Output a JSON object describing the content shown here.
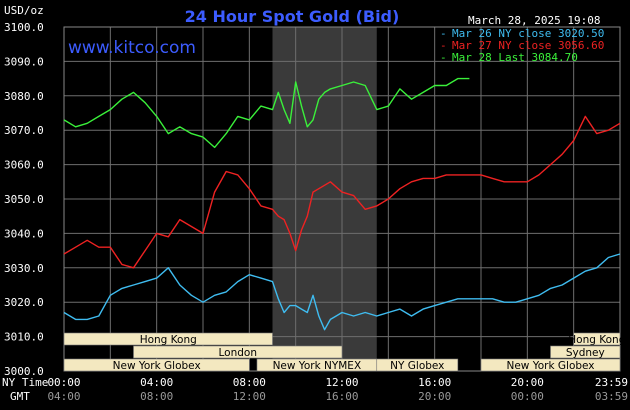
{
  "header": {
    "units": "USD/oz",
    "title": "24 Hour Spot Gold (Bid)",
    "timestamp": "March 28, 2025 19:08",
    "website": "www.kitco.com"
  },
  "colors": {
    "background": "#000000",
    "grid": "#6e6e6e",
    "mar26": "#3fbcf0",
    "mar27": "#ee2222",
    "mar28": "#3af03a",
    "title": "#3c5cff",
    "session_box": "#f3e8c0",
    "highlight": "#3a3a3a"
  },
  "legend": [
    {
      "label": "Mar 26 NY close 3020.50",
      "color": "#3fbcf0"
    },
    {
      "label": "Mar 27 NY close 3056.60",
      "color": "#ee2222"
    },
    {
      "label": "Mar 28 Last 3084.70",
      "color": "#3af03a"
    }
  ],
  "sessions": [
    {
      "label": "Hong Kong",
      "start": 0.0,
      "end": 9.0,
      "row": 0
    },
    {
      "label": "Hong Kong",
      "start": 22.0,
      "end": 24.0,
      "row": 0
    },
    {
      "label": "London",
      "start": 3.0,
      "end": 12.0,
      "row": 1
    },
    {
      "label": "Sydney",
      "start": 21.0,
      "end": 24.0,
      "row": 1
    },
    {
      "label": "New York Globex",
      "start": 0.0,
      "end": 8.0,
      "row": 2
    },
    {
      "label": "New York NYMEX",
      "start": 8.33,
      "end": 13.5,
      "row": 2
    },
    {
      "label": "NY Globex",
      "start": 13.5,
      "end": 17.0,
      "row": 2
    },
    {
      "label": "New York Globex",
      "start": 18.0,
      "end": 24.0,
      "row": 2
    }
  ],
  "axis_text": {
    "ny_time_label": "NY Time",
    "gmt_label": "GMT",
    "ny_ticks": [
      "00:00",
      "04:00",
      "08:00",
      "12:00",
      "16:00",
      "20:00",
      "23:59"
    ],
    "gmt_ticks": [
      "04:00",
      "08:00",
      "12:00",
      "16:00",
      "20:00",
      "00:00",
      "03:59"
    ]
  },
  "chart_data": {
    "type": "line",
    "title": "24 Hour Spot Gold (Bid)",
    "ylabel": "USD/oz",
    "ylim": [
      3000,
      3100
    ],
    "yticks": [
      3000.0,
      3010.0,
      3020.0,
      3030.0,
      3040.0,
      3050.0,
      3060.0,
      3070.0,
      3080.0,
      3090.0,
      3100.0
    ],
    "xlim": [
      0,
      24
    ],
    "x_unit": "hours NY time",
    "nymex_session_hours": [
      9.0,
      13.5
    ],
    "grid": true,
    "legend_position": "top-right",
    "series": [
      {
        "name": "Mar 26 NY close 3020.50",
        "x": [
          0,
          0.5,
          1,
          1.5,
          2,
          2.5,
          3,
          3.5,
          4,
          4.5,
          5,
          5.5,
          6,
          6.5,
          7,
          7.5,
          8,
          8.5,
          9,
          9.25,
          9.5,
          9.75,
          10,
          10.25,
          10.5,
          10.75,
          11,
          11.25,
          11.5,
          11.75,
          12,
          12.5,
          13,
          13.5,
          14,
          14.5,
          15,
          15.5,
          16,
          16.5,
          17,
          17.5,
          18,
          18.5,
          19,
          19.5,
          20,
          20.5,
          21,
          21.5,
          22,
          22.5,
          23,
          23.5,
          24
        ],
        "values": [
          3017,
          3015,
          3015,
          3016,
          3022,
          3024,
          3025,
          3026,
          3027,
          3030,
          3025,
          3022,
          3020,
          3022,
          3023,
          3026,
          3028,
          3027,
          3026,
          3021,
          3017,
          3019,
          3019,
          3018,
          3017,
          3022,
          3016,
          3012,
          3015,
          3016,
          3017,
          3016,
          3017,
          3016,
          3017,
          3018,
          3016,
          3018,
          3019,
          3020,
          3021,
          3021,
          3021,
          3021,
          3020,
          3020,
          3021,
          3022,
          3024,
          3025,
          3027,
          3029,
          3030,
          3033,
          3034
        ]
      },
      {
        "name": "Mar 27 NY close 3056.60",
        "x": [
          0,
          0.5,
          1,
          1.5,
          2,
          2.5,
          3,
          3.5,
          4,
          4.5,
          5,
          5.5,
          6,
          6.5,
          7,
          7.5,
          8,
          8.5,
          9,
          9.25,
          9.5,
          9.75,
          10,
          10.25,
          10.5,
          10.75,
          11,
          11.5,
          12,
          12.5,
          13,
          13.5,
          14,
          14.5,
          15,
          15.5,
          16,
          16.5,
          17,
          17.5,
          18,
          18.5,
          19,
          19.5,
          20,
          20.5,
          21,
          21.5,
          22,
          22.5,
          23,
          23.5,
          24
        ],
        "values": [
          3034,
          3036,
          3038,
          3036,
          3036,
          3031,
          3030,
          3035,
          3040,
          3039,
          3044,
          3042,
          3040,
          3052,
          3058,
          3057,
          3053,
          3048,
          3047,
          3045,
          3044,
          3040,
          3035,
          3041,
          3045,
          3052,
          3053,
          3055,
          3052,
          3051,
          3047,
          3048,
          3050,
          3053,
          3055,
          3056,
          3056,
          3057,
          3057,
          3057,
          3057,
          3056,
          3055,
          3055,
          3055,
          3057,
          3060,
          3063,
          3067,
          3074,
          3069,
          3070,
          3072
        ]
      },
      {
        "name": "Mar 28 Last 3084.70",
        "x": [
          0,
          0.5,
          1,
          1.5,
          2,
          2.5,
          3,
          3.5,
          4,
          4.5,
          5,
          5.5,
          6,
          6.5,
          7,
          7.5,
          8,
          8.5,
          9,
          9.25,
          9.5,
          9.75,
          10,
          10.25,
          10.5,
          10.75,
          11,
          11.25,
          11.5,
          12,
          12.5,
          13,
          13.5,
          14,
          14.5,
          15,
          15.5,
          16,
          16.5,
          17,
          17.5
        ],
        "values": [
          3073,
          3071,
          3072,
          3074,
          3076,
          3079,
          3081,
          3078,
          3074,
          3069,
          3071,
          3069,
          3068,
          3065,
          3069,
          3074,
          3073,
          3077,
          3076,
          3081,
          3076,
          3072,
          3084,
          3077,
          3071,
          3073,
          3079,
          3081,
          3082,
          3083,
          3084,
          3083,
          3076,
          3077,
          3082,
          3079,
          3081,
          3083,
          3083,
          3085,
          3085
        ]
      }
    ]
  }
}
